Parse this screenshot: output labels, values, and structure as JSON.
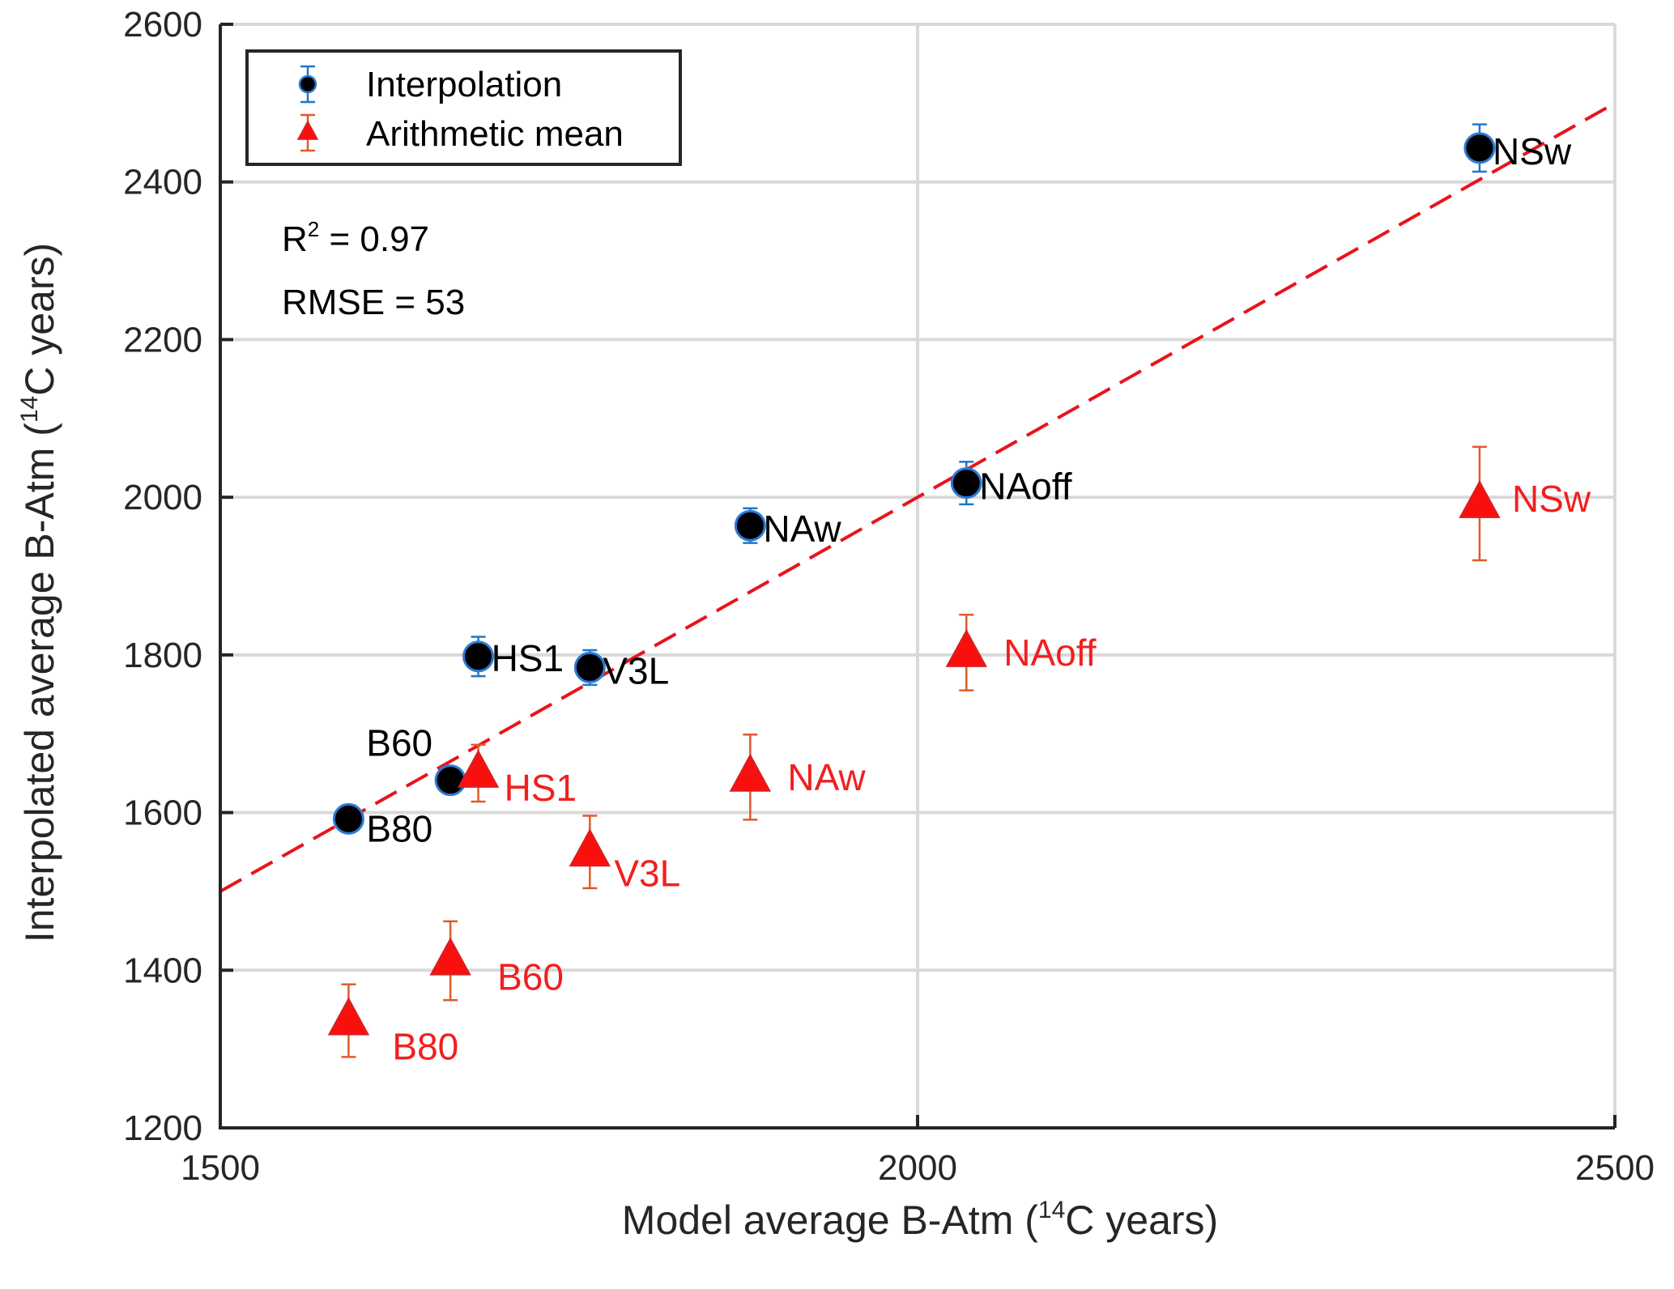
{
  "chart_data": {
    "type": "scatter",
    "xlabel": "Model average B-Atm (",
    "xlabel_sup": "14",
    "xlabel_end": "C years)",
    "ylabel": "Interpolated average B-Atm (",
    "ylabel_sup": "14",
    "ylabel_end": "C years)",
    "xlim": [
      1500,
      2500
    ],
    "ylim": [
      1200,
      2600
    ],
    "x_ticks": [
      1500,
      2000,
      2500
    ],
    "y_ticks": [
      1200,
      1400,
      1600,
      1800,
      2000,
      2200,
      2400,
      2600
    ],
    "grid": true,
    "legend_position": "top-left",
    "stats": {
      "r2_prefix": "R",
      "r2_sup": "2",
      "r2_text": " = 0.97",
      "rmse_text": "RMSE = 53"
    },
    "fit_line": {
      "x": [
        1500,
        2500
      ],
      "y": [
        1500,
        2500
      ],
      "color": "#e8141b",
      "style": "dashed"
    },
    "series": [
      {
        "name": "Interpolation",
        "marker": "circle",
        "color": "#000000",
        "edge_color": "#2b7bd6",
        "error_color": "#1f77c8",
        "label_color": "#000000",
        "points": [
          {
            "label": "B80",
            "x": 1592,
            "y": 1592,
            "err": 10
          },
          {
            "label": "B60",
            "x": 1665,
            "y": 1641,
            "err": 12
          },
          {
            "label": "HS1",
            "x": 1685,
            "y": 1798,
            "err": 25
          },
          {
            "label": "V3L",
            "x": 1765,
            "y": 1784,
            "err": 22
          },
          {
            "label": "NAw",
            "x": 1880,
            "y": 1964,
            "err": 22
          },
          {
            "label": "NAoff",
            "x": 2035,
            "y": 2018,
            "err": 27
          },
          {
            "label": "NSw",
            "x": 2403,
            "y": 2443,
            "err": 30
          }
        ]
      },
      {
        "name": "Arithmetic mean",
        "marker": "triangle",
        "color": "#fa0f0f",
        "edge_color": "#d62020",
        "error_color": "#e05a2b",
        "label_color": "#f21f1f",
        "points": [
          {
            "label": "B80",
            "x": 1592,
            "y": 1336,
            "err": 46
          },
          {
            "label": "B60",
            "x": 1665,
            "y": 1412,
            "err": 50
          },
          {
            "label": "HS1",
            "x": 1685,
            "y": 1650,
            "err": 36
          },
          {
            "label": "V3L",
            "x": 1765,
            "y": 1550,
            "err": 46
          },
          {
            "label": "NAw",
            "x": 1880,
            "y": 1645,
            "err": 54
          },
          {
            "label": "NAoff",
            "x": 2035,
            "y": 1803,
            "err": 48
          },
          {
            "label": "NSw",
            "x": 2403,
            "y": 1992,
            "err": 72
          }
        ]
      }
    ]
  }
}
